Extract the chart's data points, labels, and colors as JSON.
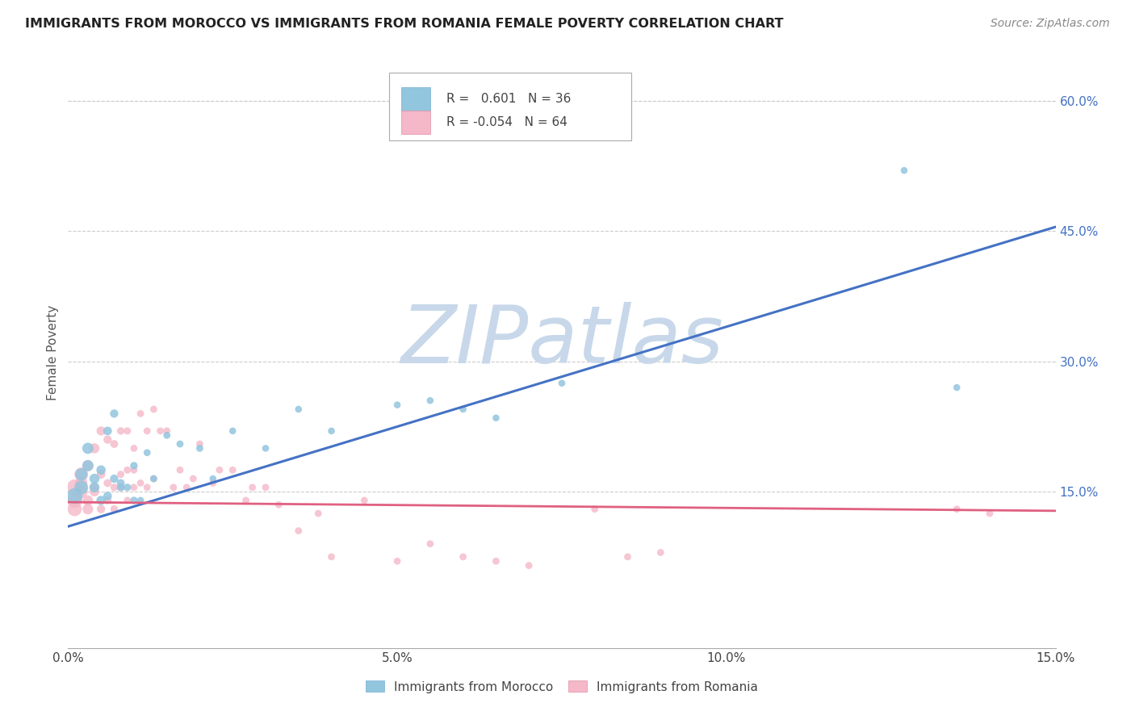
{
  "title": "IMMIGRANTS FROM MOROCCO VS IMMIGRANTS FROM ROMANIA FEMALE POVERTY CORRELATION CHART",
  "source": "Source: ZipAtlas.com",
  "xlabel_morocco": "Immigrants from Morocco",
  "xlabel_romania": "Immigrants from Romania",
  "ylabel": "Female Poverty",
  "xlim": [
    0.0,
    0.15
  ],
  "ylim": [
    -0.03,
    0.65
  ],
  "xticks": [
    0.0,
    0.05,
    0.1,
    0.15
  ],
  "xticklabels": [
    "0.0%",
    "5.0%",
    "10.0%",
    "15.0%"
  ],
  "yticks_right": [
    0.15,
    0.3,
    0.45,
    0.6
  ],
  "ytick_right_labels": [
    "15.0%",
    "30.0%",
    "45.0%",
    "60.0%"
  ],
  "morocco_R": 0.601,
  "morocco_N": 36,
  "romania_R": -0.054,
  "romania_N": 64,
  "morocco_color": "#92c5de",
  "romania_color": "#f4b8c8",
  "trend_morocco_color": "#4472c4",
  "trend_romania_color": "#e06080",
  "watermark_text": "ZIPatlas",
  "watermark_color": "#c8d8ea",
  "morocco_trend_x0": 0.0,
  "morocco_trend_y0": 0.11,
  "morocco_trend_x1": 0.15,
  "morocco_trend_y1": 0.455,
  "romania_trend_x0": 0.0,
  "romania_trend_y0": 0.138,
  "romania_trend_x1": 0.15,
  "romania_trend_y1": 0.128,
  "morocco_x": [
    0.001,
    0.002,
    0.002,
    0.003,
    0.003,
    0.004,
    0.004,
    0.005,
    0.005,
    0.006,
    0.006,
    0.007,
    0.007,
    0.008,
    0.008,
    0.009,
    0.01,
    0.01,
    0.011,
    0.012,
    0.013,
    0.015,
    0.017,
    0.02,
    0.022,
    0.025,
    0.03,
    0.035,
    0.04,
    0.05,
    0.055,
    0.06,
    0.065,
    0.075,
    0.127,
    0.135
  ],
  "morocco_y": [
    0.145,
    0.155,
    0.17,
    0.18,
    0.2,
    0.155,
    0.165,
    0.14,
    0.175,
    0.22,
    0.145,
    0.24,
    0.165,
    0.155,
    0.16,
    0.155,
    0.14,
    0.18,
    0.14,
    0.195,
    0.165,
    0.215,
    0.205,
    0.2,
    0.165,
    0.22,
    0.2,
    0.245,
    0.22,
    0.25,
    0.255,
    0.245,
    0.235,
    0.275,
    0.52,
    0.27
  ],
  "romania_x": [
    0.001,
    0.001,
    0.001,
    0.002,
    0.002,
    0.002,
    0.003,
    0.003,
    0.003,
    0.004,
    0.004,
    0.004,
    0.005,
    0.005,
    0.005,
    0.006,
    0.006,
    0.006,
    0.007,
    0.007,
    0.007,
    0.008,
    0.008,
    0.008,
    0.009,
    0.009,
    0.009,
    0.01,
    0.01,
    0.01,
    0.011,
    0.011,
    0.012,
    0.012,
    0.013,
    0.013,
    0.014,
    0.015,
    0.016,
    0.017,
    0.018,
    0.019,
    0.02,
    0.022,
    0.023,
    0.025,
    0.027,
    0.028,
    0.03,
    0.032,
    0.035,
    0.038,
    0.04,
    0.045,
    0.05,
    0.055,
    0.06,
    0.065,
    0.07,
    0.08,
    0.085,
    0.09,
    0.135,
    0.14
  ],
  "romania_y": [
    0.155,
    0.14,
    0.13,
    0.17,
    0.15,
    0.16,
    0.18,
    0.13,
    0.14,
    0.2,
    0.155,
    0.15,
    0.22,
    0.17,
    0.13,
    0.21,
    0.16,
    0.14,
    0.205,
    0.155,
    0.13,
    0.22,
    0.17,
    0.155,
    0.22,
    0.175,
    0.14,
    0.2,
    0.175,
    0.155,
    0.24,
    0.16,
    0.22,
    0.155,
    0.245,
    0.165,
    0.22,
    0.22,
    0.155,
    0.175,
    0.155,
    0.165,
    0.205,
    0.16,
    0.175,
    0.175,
    0.14,
    0.155,
    0.155,
    0.135,
    0.105,
    0.125,
    0.075,
    0.14,
    0.07,
    0.09,
    0.075,
    0.07,
    0.065,
    0.13,
    0.075,
    0.08,
    0.13,
    0.125
  ],
  "morocco_sizes": [
    200,
    150,
    120,
    100,
    100,
    80,
    80,
    70,
    70,
    60,
    60,
    55,
    55,
    50,
    50,
    45,
    45,
    45,
    40,
    40,
    40,
    40,
    40,
    40,
    38,
    38,
    38,
    38,
    38,
    38,
    38,
    38,
    38,
    38,
    38,
    38
  ],
  "romania_sizes": [
    200,
    180,
    160,
    150,
    130,
    120,
    100,
    90,
    85,
    80,
    75,
    70,
    65,
    60,
    55,
    55,
    50,
    50,
    50,
    45,
    45,
    45,
    42,
    42,
    42,
    42,
    40,
    40,
    40,
    40,
    40,
    40,
    40,
    40,
    40,
    40,
    40,
    40,
    40,
    40,
    40,
    40,
    40,
    40,
    40,
    40,
    40,
    40,
    40,
    40,
    40,
    40,
    40,
    40,
    40,
    40,
    40,
    40,
    40,
    40,
    40,
    40,
    40,
    40
  ]
}
